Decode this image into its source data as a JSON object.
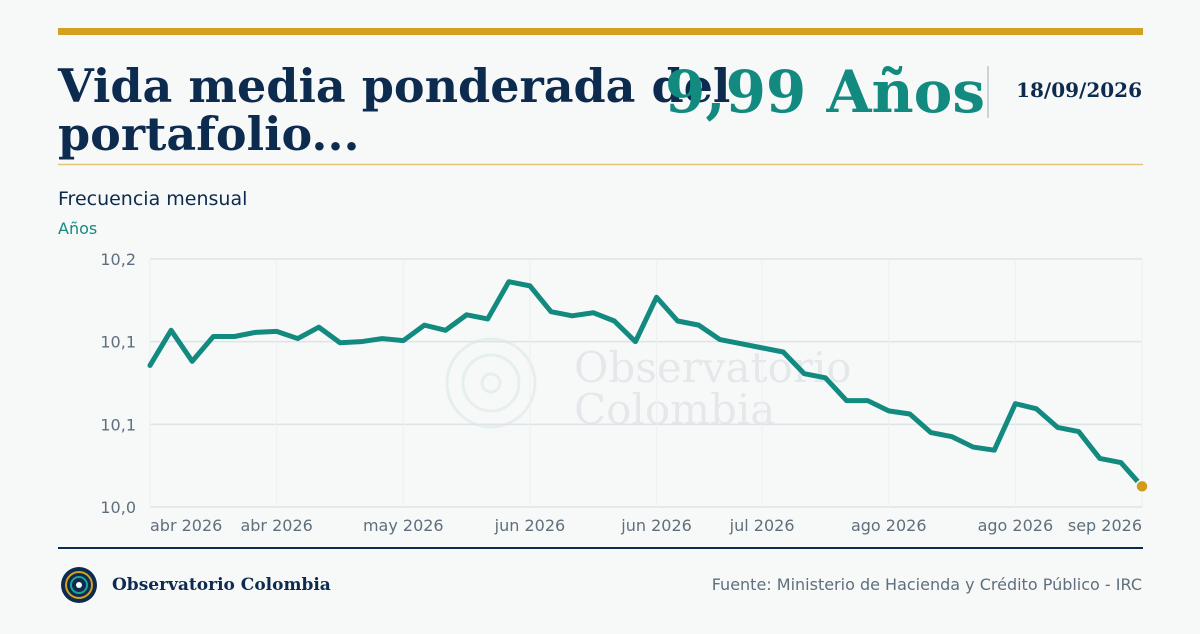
{
  "header": {
    "title_lines": [
      "Vida media ponderada del",
      "portafolio..."
    ],
    "value": "9,99 Años",
    "date": "18/09/2026"
  },
  "chart_data": {
    "type": "line",
    "subtitle": "Frecuencia mensual",
    "y_label": "Años",
    "watermark_lines": [
      "Observatorio",
      "Colombia"
    ],
    "categories": [
      "abr 2026",
      null,
      null,
      null,
      null,
      null,
      "abr 2026",
      null,
      null,
      null,
      null,
      null,
      "may 2026",
      null,
      null,
      null,
      null,
      null,
      "jun 2026",
      null,
      null,
      null,
      null,
      null,
      "jun 2026",
      null,
      null,
      null,
      null,
      "jul 2026",
      null,
      null,
      null,
      null,
      null,
      "ago 2026",
      null,
      null,
      null,
      null,
      null,
      "ago 2026",
      null,
      null,
      null,
      null,
      null,
      "sep 2026"
    ],
    "series": [
      {
        "name": "Vida media",
        "color": "#138a80",
        "values": [
          10.107,
          10.141,
          10.111,
          10.135,
          10.135,
          10.139,
          10.14,
          10.133,
          10.144,
          10.129,
          10.13,
          10.133,
          10.131,
          10.146,
          10.141,
          10.156,
          10.152,
          10.188,
          10.184,
          10.159,
          10.155,
          10.158,
          10.15,
          10.13,
          10.173,
          10.15,
          10.146,
          10.132,
          10.128,
          10.124,
          10.12,
          10.099,
          10.095,
          10.073,
          10.073,
          10.063,
          10.06,
          10.042,
          10.038,
          10.028,
          10.025,
          10.07,
          10.065,
          10.047,
          10.043,
          10.017,
          10.013,
          9.99
        ]
      }
    ],
    "last_point_color": "#d49a1c",
    "ylim": [
      9.97,
      10.21
    ],
    "yticks": [
      {
        "value": 9.97,
        "label": "10,0"
      },
      {
        "value": 10.05,
        "label": "10,1"
      },
      {
        "value": 10.13,
        "label": "10,1"
      },
      {
        "value": 10.21,
        "label": "10,2"
      }
    ],
    "grid": true
  },
  "footer": {
    "brand": "Observatorio Colombia",
    "source": "Fuente: Ministerio de Hacienda y Crédito Público - IRC"
  }
}
